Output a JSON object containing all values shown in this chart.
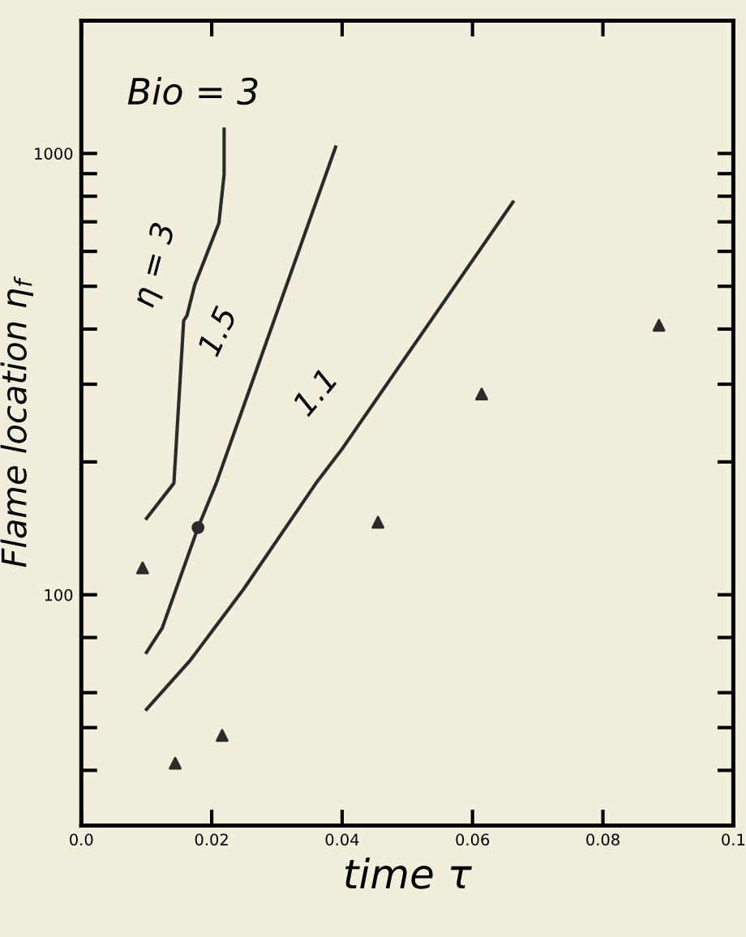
{
  "chart_data": {
    "type": "line",
    "xlabel": "time τ",
    "ylabel": "Flame location η$_{f}$",
    "log": "y",
    "xlim": [
      0.0,
      0.1
    ],
    "xticks": [
      {
        "value": 0.0,
        "label": "0.0"
      },
      0.02,
      0.04,
      0.06,
      0.08,
      0.1
    ],
    "ylim": [
      30,
      2000
    ],
    "yticks": [
      {
        "value": 30,
        "label": null
      },
      {
        "value": 40,
        "label": null
      },
      {
        "value": 50,
        "label": null
      },
      {
        "value": 60,
        "label": null
      },
      {
        "value": 80,
        "label": null
      },
      100,
      {
        "value": 200,
        "label": null
      },
      {
        "value": 300,
        "label": null
      },
      {
        "value": 400,
        "label": null
      },
      {
        "value": 500,
        "label": null
      },
      {
        "value": 600,
        "label": null
      },
      {
        "value": 700,
        "label": null
      },
      {
        "value": 800,
        "label": null
      },
      {
        "value": 900,
        "label": null
      },
      1000
    ],
    "grid": false,
    "series": [
      {
        "color": "#2b2b2b",
        "line_style": "solid",
        "marker": "none",
        "x": [
          0.01,
          0.0142,
          0.0157,
          0.0162,
          0.0174,
          0.0211,
          0.0219,
          0.0219
        ],
        "values": [
          149,
          179,
          418,
          429,
          504,
          695,
          896,
          1135
        ]
      },
      {
        "color": "#2b2b2b",
        "line_style": "solid",
        "marker": "none",
        "x": [
          0.01,
          0.0124,
          0.0179,
          0.0207,
          0.039
        ],
        "values": [
          74,
          84,
          142,
          179,
          1034
        ]
      },
      {
        "color": "#2b2b2b",
        "line_style": "solid",
        "marker": "none",
        "x": [
          0.01,
          0.0167,
          0.0249,
          0.036,
          0.0398,
          0.0662
        ],
        "values": [
          55,
          71,
          103,
          179,
          212,
          776
        ]
      },
      {
        "type": "scatter",
        "color": "#2b2b2b",
        "marker": "triangle",
        "x": [
          0.0094,
          0.0144,
          0.0216,
          0.0455,
          0.0614,
          0.0886
        ],
        "values": [
          115,
          41.5,
          48,
          146,
          285,
          408
        ]
      },
      {
        "type": "scatter",
        "color": "#2b2b2b",
        "marker": "circle",
        "x": [
          0.0179
        ],
        "values": [
          142
        ]
      }
    ],
    "annotations": [
      "Bio = 3",
      {
        "text": "η = 3",
        "x": 0.0162,
        "y": 429
      },
      {
        "text": "1.5",
        "x": 0.026,
        "y": 330
      },
      {
        "text": "1.1",
        "x": 0.041,
        "y": 240
      }
    ]
  }
}
